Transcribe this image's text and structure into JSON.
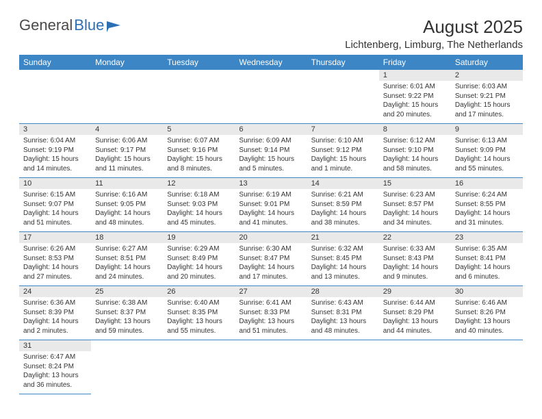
{
  "logo": {
    "text1": "General",
    "text2": "Blue"
  },
  "title": "August 2025",
  "location": "Lichtenberg, Limburg, The Netherlands",
  "header_bg": "#3d86c6",
  "daynum_bg": "#e9e9e9",
  "weekdays": [
    "Sunday",
    "Monday",
    "Tuesday",
    "Wednesday",
    "Thursday",
    "Friday",
    "Saturday"
  ],
  "cells": [
    [
      null,
      null,
      null,
      null,
      null,
      {
        "n": "1",
        "sr": "6:01 AM",
        "ss": "9:22 PM",
        "dl": "15 hours and 20 minutes."
      },
      {
        "n": "2",
        "sr": "6:03 AM",
        "ss": "9:21 PM",
        "dl": "15 hours and 17 minutes."
      }
    ],
    [
      {
        "n": "3",
        "sr": "6:04 AM",
        "ss": "9:19 PM",
        "dl": "15 hours and 14 minutes."
      },
      {
        "n": "4",
        "sr": "6:06 AM",
        "ss": "9:17 PM",
        "dl": "15 hours and 11 minutes."
      },
      {
        "n": "5",
        "sr": "6:07 AM",
        "ss": "9:16 PM",
        "dl": "15 hours and 8 minutes."
      },
      {
        "n": "6",
        "sr": "6:09 AM",
        "ss": "9:14 PM",
        "dl": "15 hours and 5 minutes."
      },
      {
        "n": "7",
        "sr": "6:10 AM",
        "ss": "9:12 PM",
        "dl": "15 hours and 1 minute."
      },
      {
        "n": "8",
        "sr": "6:12 AM",
        "ss": "9:10 PM",
        "dl": "14 hours and 58 minutes."
      },
      {
        "n": "9",
        "sr": "6:13 AM",
        "ss": "9:09 PM",
        "dl": "14 hours and 55 minutes."
      }
    ],
    [
      {
        "n": "10",
        "sr": "6:15 AM",
        "ss": "9:07 PM",
        "dl": "14 hours and 51 minutes."
      },
      {
        "n": "11",
        "sr": "6:16 AM",
        "ss": "9:05 PM",
        "dl": "14 hours and 48 minutes."
      },
      {
        "n": "12",
        "sr": "6:18 AM",
        "ss": "9:03 PM",
        "dl": "14 hours and 45 minutes."
      },
      {
        "n": "13",
        "sr": "6:19 AM",
        "ss": "9:01 PM",
        "dl": "14 hours and 41 minutes."
      },
      {
        "n": "14",
        "sr": "6:21 AM",
        "ss": "8:59 PM",
        "dl": "14 hours and 38 minutes."
      },
      {
        "n": "15",
        "sr": "6:23 AM",
        "ss": "8:57 PM",
        "dl": "14 hours and 34 minutes."
      },
      {
        "n": "16",
        "sr": "6:24 AM",
        "ss": "8:55 PM",
        "dl": "14 hours and 31 minutes."
      }
    ],
    [
      {
        "n": "17",
        "sr": "6:26 AM",
        "ss": "8:53 PM",
        "dl": "14 hours and 27 minutes."
      },
      {
        "n": "18",
        "sr": "6:27 AM",
        "ss": "8:51 PM",
        "dl": "14 hours and 24 minutes."
      },
      {
        "n": "19",
        "sr": "6:29 AM",
        "ss": "8:49 PM",
        "dl": "14 hours and 20 minutes."
      },
      {
        "n": "20",
        "sr": "6:30 AM",
        "ss": "8:47 PM",
        "dl": "14 hours and 17 minutes."
      },
      {
        "n": "21",
        "sr": "6:32 AM",
        "ss": "8:45 PM",
        "dl": "14 hours and 13 minutes."
      },
      {
        "n": "22",
        "sr": "6:33 AM",
        "ss": "8:43 PM",
        "dl": "14 hours and 9 minutes."
      },
      {
        "n": "23",
        "sr": "6:35 AM",
        "ss": "8:41 PM",
        "dl": "14 hours and 6 minutes."
      }
    ],
    [
      {
        "n": "24",
        "sr": "6:36 AM",
        "ss": "8:39 PM",
        "dl": "14 hours and 2 minutes."
      },
      {
        "n": "25",
        "sr": "6:38 AM",
        "ss": "8:37 PM",
        "dl": "13 hours and 59 minutes."
      },
      {
        "n": "26",
        "sr": "6:40 AM",
        "ss": "8:35 PM",
        "dl": "13 hours and 55 minutes."
      },
      {
        "n": "27",
        "sr": "6:41 AM",
        "ss": "8:33 PM",
        "dl": "13 hours and 51 minutes."
      },
      {
        "n": "28",
        "sr": "6:43 AM",
        "ss": "8:31 PM",
        "dl": "13 hours and 48 minutes."
      },
      {
        "n": "29",
        "sr": "6:44 AM",
        "ss": "8:29 PM",
        "dl": "13 hours and 44 minutes."
      },
      {
        "n": "30",
        "sr": "6:46 AM",
        "ss": "8:26 PM",
        "dl": "13 hours and 40 minutes."
      }
    ],
    [
      {
        "n": "31",
        "sr": "6:47 AM",
        "ss": "8:24 PM",
        "dl": "13 hours and 36 minutes."
      },
      null,
      null,
      null,
      null,
      null,
      null
    ]
  ],
  "labels": {
    "sunrise": "Sunrise:",
    "sunset": "Sunset:",
    "daylight": "Daylight:"
  }
}
